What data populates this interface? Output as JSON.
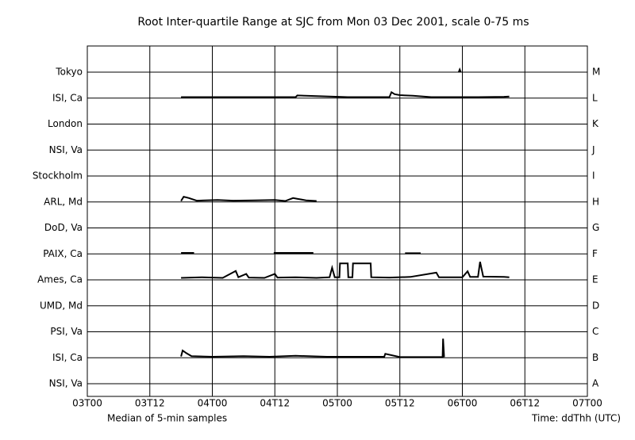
{
  "chart_data": {
    "type": "strip",
    "title": "Root Inter-quartile Range at SJC from Mon 03 Dec 2001, scale 0-75 ms",
    "subtitle": "Median of 5-min samples",
    "xlabel": "Time: ddThh (UTC)",
    "xlim": [
      0,
      96
    ],
    "xticks": [
      {
        "value": 0,
        "label": "03T00"
      },
      {
        "value": 12,
        "label": "03T12"
      },
      {
        "value": 24,
        "label": "04T00"
      },
      {
        "value": 36,
        "label": "04T12"
      },
      {
        "value": 48,
        "label": "05T00"
      },
      {
        "value": 60,
        "label": "05T12"
      },
      {
        "value": 72,
        "label": "06T00"
      },
      {
        "value": 84,
        "label": "06T12"
      },
      {
        "value": 96,
        "label": "07T00"
      }
    ],
    "row_ylim": [
      0,
      75
    ],
    "grid": true,
    "color": "#000000",
    "series": [
      {
        "name": "Tokyo",
        "code": "M",
        "x": [
          71.3,
          71.5,
          71.7
        ],
        "values": [
          0,
          8,
          0
        ]
      },
      {
        "name": "ISI, Ca",
        "code": "L",
        "x": [
          18,
          30,
          40,
          40.3,
          50,
          58,
          58.4,
          59,
          60,
          62.5,
          66,
          75,
          80,
          81
        ],
        "values": [
          3,
          3,
          3,
          8,
          3,
          3,
          18,
          12,
          9,
          7,
          3,
          3,
          4,
          5
        ]
      },
      {
        "name": "London",
        "code": "K"
      },
      {
        "name": "NSI, Va",
        "code": "J"
      },
      {
        "name": "Stockholm",
        "code": "I"
      },
      {
        "name": "ARL, Md",
        "code": "H",
        "x": [
          18,
          18.5,
          19.5,
          21,
          25,
          28,
          32,
          36,
          38,
          39.5,
          40.5,
          42,
          44
        ],
        "values": [
          3,
          16,
          12,
          4,
          6,
          4,
          5,
          6,
          3,
          12,
          9,
          5,
          3
        ]
      },
      {
        "name": "DoD, Va",
        "code": "G"
      },
      {
        "name": "PAIX, Ca",
        "code": "F",
        "x": [
          18,
          20.5,
          27,
          35.8,
          43.4,
          50,
          61,
          64
        ],
        "values": [
          3,
          3,
          null,
          3,
          3,
          null,
          2,
          2
        ]
      },
      {
        "name": "Ames, Ca",
        "code": "E",
        "x": [
          18,
          22,
          26,
          28.5,
          29,
          30.5,
          31,
          34,
          36,
          36.5,
          40,
          44,
          46.5,
          47,
          47.5,
          48.4,
          48.5,
          50,
          50.1,
          50.9,
          51,
          54.4,
          54.5,
          58,
          62,
          67,
          67.5,
          72,
          73,
          73.5,
          75,
          75.4,
          76,
          80,
          81
        ],
        "values": [
          6,
          8,
          6,
          27,
          8,
          18,
          7,
          6,
          18,
          7,
          8,
          6,
          8,
          37,
          8,
          8,
          50,
          50,
          8,
          8,
          50,
          50,
          8,
          7,
          9,
          22,
          8,
          8,
          26,
          9,
          9,
          55,
          10,
          9,
          8
        ]
      },
      {
        "name": "UMD, Md",
        "code": "D"
      },
      {
        "name": "PSI, Va",
        "code": "C"
      },
      {
        "name": "ISI, Ca",
        "code": "B",
        "x": [
          18,
          18.3,
          19,
          20,
          24,
          30,
          35,
          40,
          46,
          57,
          57.2,
          60,
          68.2,
          68.3,
          68.5
        ],
        "values": [
          4,
          22,
          14,
          5,
          3,
          5,
          3,
          6,
          3,
          3,
          12,
          2,
          2,
          58,
          2
        ]
      },
      {
        "name": "NSI, Va",
        "code": "A"
      }
    ]
  }
}
